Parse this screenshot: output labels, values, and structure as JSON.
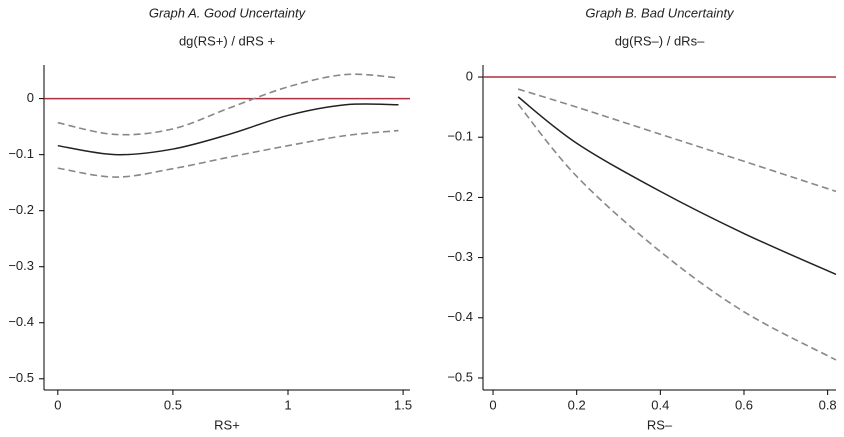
{
  "chart_data": [
    {
      "type": "line",
      "title": "Graph A. Good Uncertainty",
      "subtitle": "dg(RS+) / dRS +",
      "xlabel": "RS+",
      "x": [
        0,
        0.25,
        0.5,
        0.75,
        1,
        1.25,
        1.48
      ],
      "series": [
        {
          "color": "#222222",
          "dashed": false,
          "values": [
            -0.084,
            -0.1,
            -0.09,
            -0.063,
            -0.03,
            -0.011,
            -0.011
          ]
        },
        {
          "color": "#888888",
          "dashed": true,
          "values": [
            -0.043,
            -0.064,
            -0.054,
            -0.016,
            0.021,
            0.043,
            0.037
          ]
        },
        {
          "color": "#888888",
          "dashed": true,
          "values": [
            -0.124,
            -0.14,
            -0.125,
            -0.104,
            -0.084,
            -0.066,
            -0.057
          ]
        }
      ],
      "refline": {
        "value": 0,
        "color": "#a8323e"
      },
      "xlim": [
        -0.06,
        1.53
      ],
      "xticks": [
        0,
        0.5,
        1,
        1.5
      ],
      "ylim": [
        -0.52,
        0.06
      ],
      "yticks": [
        0,
        {
          "value": -0.1,
          "label": "−0.1"
        },
        {
          "value": -0.2,
          "label": "−0.2"
        },
        {
          "value": -0.3,
          "label": "−0.3"
        },
        {
          "value": -0.4,
          "label": "−0.4"
        },
        {
          "value": -0.5,
          "label": "−0.5"
        }
      ]
    },
    {
      "type": "line",
      "title": "Graph B. Bad Uncertainty",
      "subtitle": "dg(RS–) / dRs–",
      "xlabel": "RS–",
      "x": [
        0.06,
        0.2,
        0.4,
        0.6,
        0.82
      ],
      "series": [
        {
          "color": "#222222",
          "dashed": false,
          "values": [
            -0.033,
            -0.11,
            -0.19,
            -0.26,
            -0.328
          ]
        },
        {
          "color": "#888888",
          "dashed": true,
          "values": [
            -0.02,
            -0.05,
            -0.095,
            -0.14,
            -0.19
          ]
        },
        {
          "color": "#888888",
          "dashed": true,
          "values": [
            -0.045,
            -0.165,
            -0.29,
            -0.39,
            -0.47
          ]
        }
      ],
      "refline": {
        "value": 0,
        "color": "#a8323e"
      },
      "xlim": [
        -0.024,
        0.82
      ],
      "xticks": [
        0,
        0.2,
        0.4,
        0.6,
        0.8
      ],
      "ylim": [
        -0.52,
        0.02
      ],
      "yticks": [
        0,
        {
          "value": -0.1,
          "label": "−0.1"
        },
        {
          "value": -0.2,
          "label": "−0.2"
        },
        {
          "value": -0.3,
          "label": "−0.3"
        },
        {
          "value": -0.4,
          "label": "−0.4"
        },
        {
          "value": -0.5,
          "label": "−0.5"
        }
      ]
    }
  ]
}
